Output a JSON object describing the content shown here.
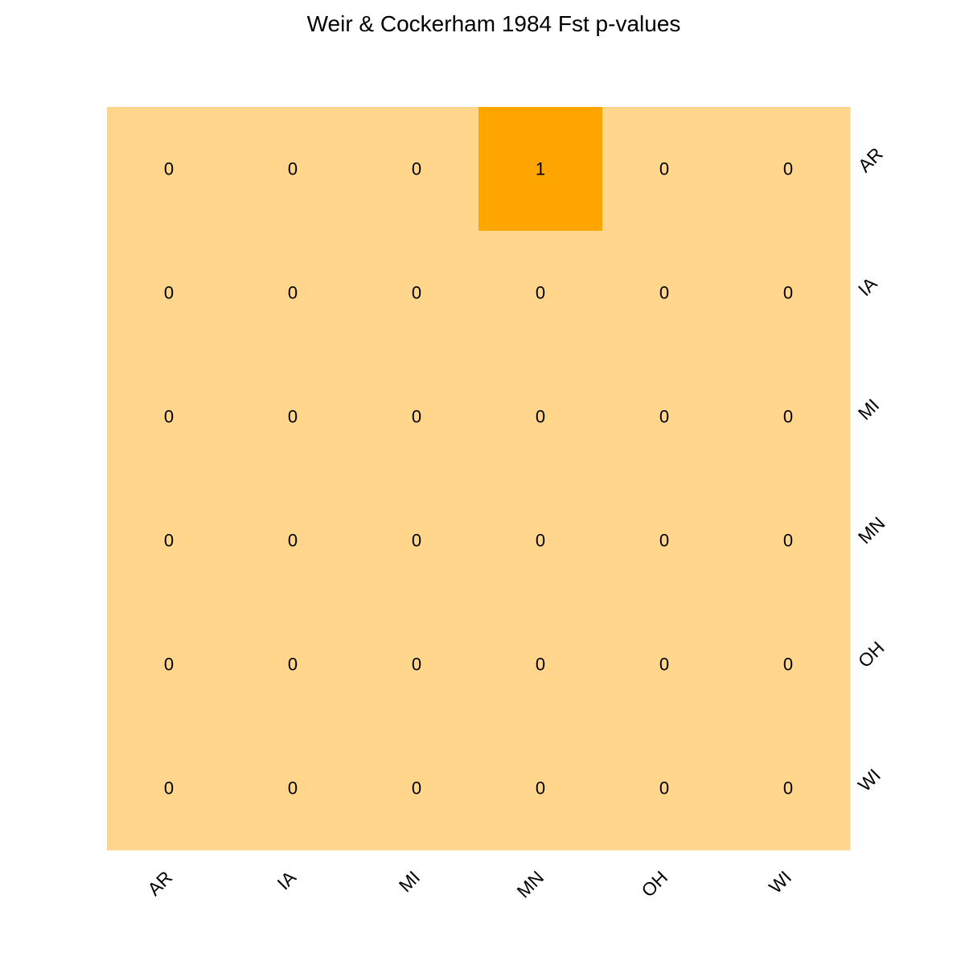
{
  "chart_data": {
    "type": "heatmap",
    "title": "Weir & Cockerham 1984 Fst p-values",
    "x_labels": [
      "AR",
      "IA",
      "MI",
      "MN",
      "OH",
      "WI"
    ],
    "y_labels": [
      "AR",
      "IA",
      "MI",
      "MN",
      "OH",
      "WI"
    ],
    "values": [
      [
        0,
        0,
        0,
        1,
        0,
        0
      ],
      [
        0,
        0,
        0,
        0,
        0,
        0
      ],
      [
        0,
        0,
        0,
        0,
        0,
        0
      ],
      [
        0,
        0,
        0,
        0,
        0,
        0
      ],
      [
        0,
        0,
        0,
        0,
        0,
        0
      ],
      [
        0,
        0,
        0,
        0,
        0,
        0
      ]
    ],
    "y_axis_side": "right",
    "grid": false,
    "legend": "none",
    "colors": {
      "low": "#FFD68C",
      "high": "#FFA500",
      "text": "#000000"
    }
  }
}
